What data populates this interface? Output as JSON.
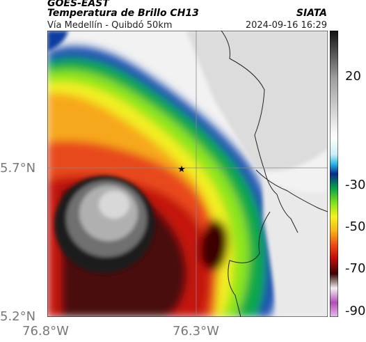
{
  "header": {
    "satellite": "GOES-EAST",
    "product": "Temperatura de Brillo CH13",
    "area": "Vía Medellín - Quibdó 50km",
    "source": "SIATA",
    "datetime": "2024-09-16 16:29"
  },
  "axes": {
    "y_ticks": [
      "5.7°N",
      "5.2°N"
    ],
    "x_ticks": [
      "76.8°W",
      "76.3°W"
    ]
  },
  "colorbar": {
    "labels": [
      "20",
      "-30",
      "-50",
      "-70",
      "-90"
    ],
    "stops": [
      {
        "value": 30,
        "color": "#111111"
      },
      {
        "value": 10,
        "color": "#9e9e9e"
      },
      {
        "value": -15,
        "color": "#ffffff"
      },
      {
        "value": -22,
        "color": "#c9eef6"
      },
      {
        "value": -26,
        "color": "#28b4e6"
      },
      {
        "value": -30,
        "color": "#0a2a8a"
      },
      {
        "value": -36,
        "color": "#0aa04a"
      },
      {
        "value": -42,
        "color": "#7de01a"
      },
      {
        "value": -48,
        "color": "#f4f41e"
      },
      {
        "value": -54,
        "color": "#f5b21c"
      },
      {
        "value": -60,
        "color": "#ec4a12"
      },
      {
        "value": -65,
        "color": "#c8100c"
      },
      {
        "value": -72,
        "color": "#3a0606"
      },
      {
        "value": -78,
        "color": "#efefef"
      },
      {
        "value": -84,
        "color": "#b24eb2"
      },
      {
        "value": -90,
        "color": "#e6c0e8"
      }
    ]
  },
  "marker": {
    "symbol": "★"
  }
}
